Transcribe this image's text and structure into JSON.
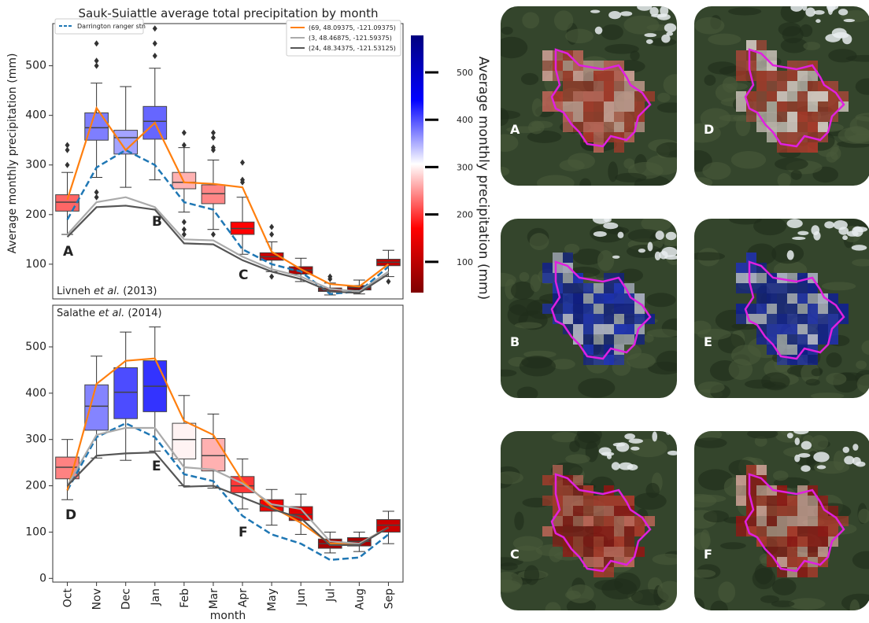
{
  "title": "Sauk-Suiattle average total precipitation by month",
  "chart_data": [
    {
      "type": "box",
      "ylabel": "Average monthly precipitation (mm)",
      "source": {
        "pre": "Livneh ",
        "em": "et al.",
        "post": " (2013)"
      },
      "annotations": [
        "A",
        "B",
        "C"
      ],
      "ylim": [
        30,
        585
      ],
      "yticks": [
        100,
        200,
        300,
        400,
        500
      ],
      "box": {
        "q1": [
          207,
          350,
          322,
          352,
          252,
          222,
          160,
          108,
          80,
          45,
          48,
          97
        ],
        "median": [
          225,
          375,
          355,
          388,
          265,
          242,
          172,
          115,
          88,
          48,
          53,
          104
        ],
        "q3": [
          240,
          405,
          370,
          418,
          285,
          260,
          185,
          123,
          95,
          52,
          57,
          110
        ],
        "whislo": [
          160,
          275,
          255,
          270,
          205,
          170,
          120,
          85,
          65,
          38,
          40,
          75
        ],
        "whishi": [
          285,
          465,
          458,
          495,
          335,
          310,
          235,
          145,
          112,
          62,
          68,
          128
        ],
        "fliers": [
          [
            300,
            330,
            340
          ],
          [
            500,
            510,
            545,
            245,
            235
          ],
          [],
          [
            520,
            545,
            575
          ],
          [
            365,
            340,
            185,
            170,
            160
          ],
          [
            365,
            355,
            330,
            335,
            160
          ],
          [
            305,
            270,
            265
          ],
          [
            175,
            160,
            75
          ],
          [],
          [
            75,
            70
          ],
          [],
          [
            65
          ]
        ]
      },
      "series": [
        {
          "name": "Darrington ranger stn",
          "color": "#1f77b4",
          "dash": true,
          "legend": "upper left",
          "values": [
            190,
            295,
            330,
            300,
            225,
            210,
            130,
            100,
            85,
            40,
            45,
            95
          ]
        },
        {
          "name": "(69, 48.09375, -121.09375)",
          "color": "#ff7f0e",
          "legend": "upper right",
          "values": [
            230,
            415,
            330,
            385,
            265,
            262,
            255,
            125,
            90,
            60,
            55,
            100
          ]
        },
        {
          "name": "(3, 48.46875, -121.59375)",
          "color": "#aaaaaa",
          "legend": "upper right",
          "values": [
            160,
            225,
            235,
            215,
            150,
            148,
            115,
            90,
            75,
            50,
            45,
            85
          ]
        },
        {
          "name": "(24, 48.34375, -121.53125)",
          "color": "#555555",
          "legend": "upper right",
          "values": [
            155,
            215,
            218,
            210,
            142,
            140,
            108,
            85,
            70,
            45,
            42,
            80
          ]
        }
      ]
    },
    {
      "type": "box",
      "xlabel": "month",
      "source": {
        "pre": "Salathe ",
        "em": "et al.",
        "post": " (2014)"
      },
      "annotations": [
        "D",
        "E",
        "F"
      ],
      "categories": [
        "Oct",
        "Nov",
        "Dec",
        "Jan",
        "Feb",
        "Mar",
        "Apr",
        "May",
        "Jun",
        "Jul",
        "Aug",
        "Sep"
      ],
      "ylim": [
        -8,
        590
      ],
      "yticks": [
        0,
        100,
        200,
        300,
        400,
        500
      ],
      "box": {
        "q1": [
          215,
          320,
          345,
          360,
          258,
          232,
          185,
          145,
          125,
          65,
          70,
          100
        ],
        "median": [
          240,
          372,
          402,
          415,
          300,
          265,
          200,
          155,
          138,
          75,
          80,
          115
        ],
        "q3": [
          262,
          418,
          455,
          470,
          335,
          302,
          220,
          170,
          155,
          85,
          88,
          127
        ],
        "whislo": [
          170,
          260,
          255,
          275,
          200,
          195,
          150,
          115,
          95,
          55,
          58,
          75
        ],
        "whishi": [
          300,
          480,
          532,
          543,
          395,
          355,
          258,
          192,
          182,
          100,
          100,
          145
        ],
        "fliers": [
          [],
          [],
          [],
          [],
          [],
          [],
          [],
          [],
          [],
          [],
          [],
          []
        ]
      },
      "series": [
        {
          "color": "#1f77b4",
          "dash": true,
          "values": [
            190,
            305,
            335,
            305,
            225,
            210,
            135,
            95,
            75,
            40,
            45,
            95
          ]
        },
        {
          "color": "#ff7f0e",
          "values": [
            190,
            420,
            470,
            475,
            340,
            310,
            210,
            155,
            120,
            75,
            75,
            110
          ]
        },
        {
          "color": "#aaaaaa",
          "values": [
            200,
            310,
            325,
            325,
            240,
            235,
            205,
            160,
            150,
            80,
            75,
            110
          ]
        },
        {
          "color": "#555555",
          "values": [
            200,
            265,
            270,
            272,
            198,
            200,
            175,
            150,
            130,
            72,
            72,
            110
          ]
        }
      ]
    }
  ],
  "colorbar": {
    "label": "Average monthly precipitation (mm)",
    "lim": [
      35,
      578
    ],
    "ticks": [
      100,
      200,
      300,
      400,
      500
    ],
    "colors": [
      "#7f0000",
      "#ff0000",
      "#ffffff",
      "#0000ff",
      "#00007f"
    ]
  },
  "maps": {
    "labels": [
      "A",
      "D",
      "B",
      "E",
      "C",
      "F"
    ]
  }
}
